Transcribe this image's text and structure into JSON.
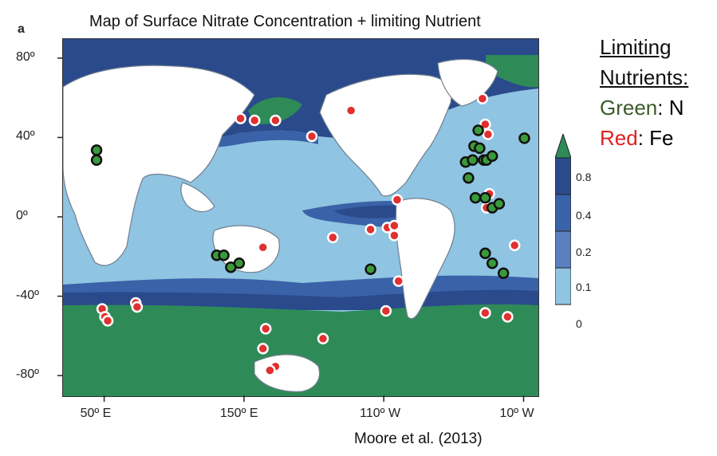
{
  "figure": {
    "panel_label": "a",
    "title": "Map of Surface Nitrate Concentration + limiting Nutrient",
    "credit": "Moore et al. (2013)"
  },
  "axes": {
    "y_ticks": [
      {
        "value": 80,
        "label": "80º"
      },
      {
        "value": 40,
        "label": "40º"
      },
      {
        "value": 0,
        "label": "0º"
      },
      {
        "value": -40,
        "label": "-40º"
      },
      {
        "value": -80,
        "label": "-80º"
      }
    ],
    "x_ticks": [
      {
        "value": 50,
        "label": "50º E"
      },
      {
        "value": 150,
        "label": "150º E"
      },
      {
        "value": -110,
        "label": "110º W"
      },
      {
        "value": -10,
        "label": "10º W"
      }
    ]
  },
  "legend": {
    "header_line1": "Limiting",
    "header_line2": "Nutrients:",
    "green_word": "Green",
    "green_rest": ": N",
    "red_word": "Red",
    "red_rest": ": Fe",
    "green_color": "#3a5a2a",
    "red_color": "#e02020"
  },
  "colorbar": {
    "levels": [
      "0.8",
      "0.4",
      "0.2",
      "0.1",
      "0"
    ],
    "colors": [
      "#2e8b57",
      "#2a4a8c",
      "#3a62a8",
      "#5a80c0",
      "#8fc4e2"
    ]
  },
  "chart_data": {
    "type": "map",
    "field": "surface nitrate concentration",
    "markers_fe": [
      {
        "lon": 48,
        "lat": -46
      },
      {
        "lon": 50,
        "lat": -50
      },
      {
        "lon": 52,
        "lat": -52
      },
      {
        "lon": 72,
        "lat": -43
      },
      {
        "lon": 73,
        "lat": -45
      },
      {
        "lon": 147,
        "lat": 50
      },
      {
        "lon": 157,
        "lat": 49
      },
      {
        "lon": 172,
        "lat": 49
      },
      {
        "lon": 165,
        "lat": -56
      },
      {
        "lon": 163,
        "lat": -66
      },
      {
        "lon": 172,
        "lat": -75
      },
      {
        "lon": -162,
        "lat": 41
      },
      {
        "lon": -147,
        "lat": -10
      },
      {
        "lon": -134,
        "lat": 54
      },
      {
        "lon": -120,
        "lat": -6
      },
      {
        "lon": -108,
        "lat": -5
      },
      {
        "lon": -103,
        "lat": -9
      },
      {
        "lon": -103,
        "lat": -4
      },
      {
        "lon": -100,
        "lat": -32
      },
      {
        "lon": -109,
        "lat": -47
      },
      {
        "lon": -154,
        "lat": -61
      },
      {
        "lon": -40,
        "lat": 60
      },
      {
        "lon": -38,
        "lat": 47
      },
      {
        "lon": -36,
        "lat": 42
      },
      {
        "lon": -35,
        "lat": 12
      },
      {
        "lon": -37,
        "lat": 5
      },
      {
        "lon": -38,
        "lat": -48
      },
      {
        "lon": -22,
        "lat": -50
      },
      {
        "lon": -17,
        "lat": -14
      },
      {
        "lon": 163,
        "lat": -15
      },
      {
        "lon": 168,
        "lat": -77
      },
      {
        "lon": -101,
        "lat": 9
      }
    ],
    "markers_n": [
      {
        "lon": 44,
        "lat": 34
      },
      {
        "lon": 44,
        "lat": 29
      },
      {
        "lon": 130,
        "lat": -19
      },
      {
        "lon": 135,
        "lat": -19
      },
      {
        "lon": 140,
        "lat": -25
      },
      {
        "lon": 146,
        "lat": -23
      },
      {
        "lon": -120,
        "lat": -26
      },
      {
        "lon": -52,
        "lat": 28
      },
      {
        "lon": -47,
        "lat": 29
      },
      {
        "lon": -46,
        "lat": 36
      },
      {
        "lon": -43,
        "lat": 44
      },
      {
        "lon": -42,
        "lat": 35
      },
      {
        "lon": -39,
        "lat": 29
      },
      {
        "lon": -37,
        "lat": 29
      },
      {
        "lon": -33,
        "lat": 31
      },
      {
        "lon": -50,
        "lat": 20
      },
      {
        "lon": -45,
        "lat": 10
      },
      {
        "lon": -38,
        "lat": 10
      },
      {
        "lon": -33,
        "lat": 5
      },
      {
        "lon": -28,
        "lat": 7
      },
      {
        "lon": -10,
        "lat": 40
      },
      {
        "lon": 1,
        "lat": 34
      },
      {
        "lon": -38,
        "lat": -18
      },
      {
        "lon": -33,
        "lat": -23
      },
      {
        "lon": -25,
        "lat": -28
      }
    ]
  }
}
